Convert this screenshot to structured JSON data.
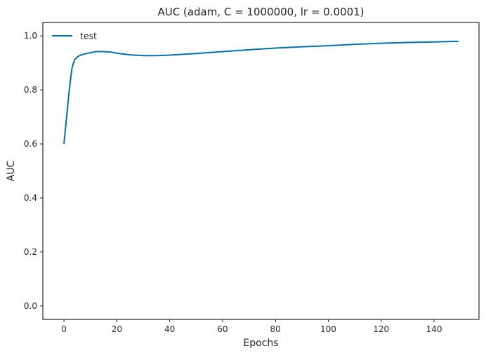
{
  "chart_data": {
    "type": "line",
    "title": "AUC (adam, C = 1000000, lr = 0.0001)",
    "xlabel": "Epochs",
    "ylabel": "AUC",
    "xlim": [
      -8,
      157
    ],
    "ylim": [
      -0.05,
      1.05
    ],
    "xticks": [
      0,
      20,
      40,
      60,
      80,
      100,
      120,
      140
    ],
    "yticks": [
      0.0,
      0.2,
      0.4,
      0.6,
      0.8,
      1.0
    ],
    "xtick_labels": [
      "0",
      "20",
      "40",
      "60",
      "80",
      "100",
      "120",
      "140"
    ],
    "ytick_labels": [
      "0.0",
      "0.2",
      "0.4",
      "0.6",
      "0.8",
      "1.0"
    ],
    "grid": false,
    "legend_position": "top-left",
    "series": [
      {
        "name": "test",
        "color": "#0072b2",
        "x": [
          0,
          1,
          2,
          3,
          4,
          5,
          6,
          8,
          10,
          12,
          15,
          18,
          20,
          25,
          30,
          35,
          40,
          50,
          60,
          70,
          80,
          90,
          100,
          110,
          120,
          130,
          140,
          149
        ],
        "y": [
          0.602,
          0.7,
          0.8,
          0.88,
          0.912,
          0.922,
          0.928,
          0.934,
          0.938,
          0.942,
          0.942,
          0.94,
          0.936,
          0.93,
          0.927,
          0.927,
          0.929,
          0.935,
          0.942,
          0.949,
          0.955,
          0.96,
          0.964,
          0.969,
          0.973,
          0.976,
          0.978,
          0.98
        ]
      }
    ]
  }
}
